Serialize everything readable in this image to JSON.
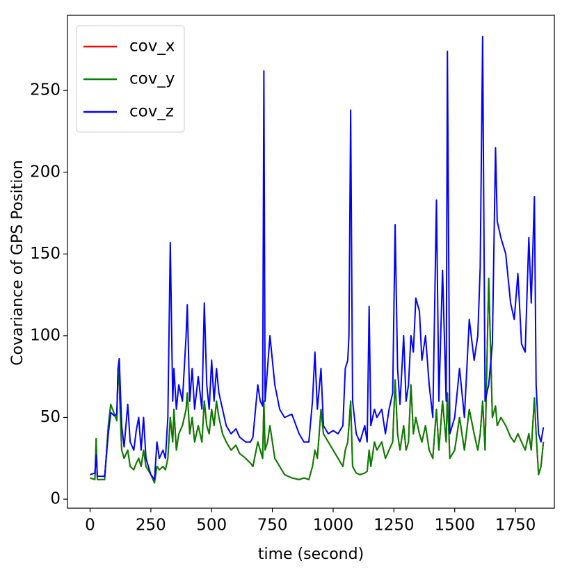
{
  "chart_data": {
    "type": "line",
    "xlabel": "time (second)",
    "ylabel": "Covariance of GPS Position",
    "x": [
      0,
      20,
      25,
      30,
      60,
      75,
      85,
      100,
      110,
      115,
      120,
      130,
      140,
      155,
      165,
      180,
      190,
      200,
      210,
      220,
      230,
      250,
      265,
      275,
      285,
      300,
      310,
      320,
      330,
      340,
      345,
      355,
      365,
      380,
      395,
      400,
      410,
      420,
      430,
      445,
      460,
      470,
      480,
      490,
      500,
      510,
      520,
      530,
      545,
      560,
      580,
      600,
      615,
      640,
      660,
      670,
      690,
      700,
      710,
      715,
      720,
      730,
      740,
      760,
      780,
      800,
      830,
      860,
      880,
      900,
      915,
      925,
      935,
      950,
      960,
      980,
      1000,
      1020,
      1040,
      1050,
      1060,
      1065,
      1072,
      1080,
      1095,
      1110,
      1130,
      1140,
      1148,
      1155,
      1170,
      1180,
      1200,
      1215,
      1230,
      1245,
      1255,
      1265,
      1275,
      1290,
      1300,
      1310,
      1320,
      1330,
      1340,
      1355,
      1365,
      1380,
      1395,
      1410,
      1425,
      1435,
      1450,
      1465,
      1470,
      1480,
      1500,
      1520,
      1540,
      1560,
      1580,
      1595,
      1605,
      1615,
      1625,
      1640,
      1655,
      1668,
      1675,
      1690,
      1710,
      1730,
      1745,
      1760,
      1775,
      1790,
      1805,
      1815,
      1828,
      1835,
      1845,
      1855,
      1865
    ],
    "series": [
      {
        "name": "cov_x",
        "color": "#ff0000",
        "values": [
          13,
          12,
          37,
          12,
          12,
          45,
          58,
          52,
          48,
          80,
          70,
          30,
          25,
          30,
          20,
          18,
          22,
          25,
          20,
          30,
          20,
          15,
          10,
          20,
          18,
          20,
          18,
          25,
          50,
          35,
          55,
          30,
          40,
          45,
          55,
          65,
          40,
          50,
          35,
          45,
          35,
          60,
          45,
          40,
          55,
          45,
          60,
          50,
          40,
          35,
          30,
          33,
          28,
          25,
          22,
          20,
          35,
          30,
          25,
          60,
          30,
          35,
          45,
          25,
          20,
          15,
          13,
          12,
          13,
          12,
          20,
          30,
          25,
          55,
          40,
          35,
          30,
          25,
          20,
          30,
          35,
          45,
          60,
          20,
          16,
          15,
          16,
          17,
          30,
          20,
          35,
          30,
          35,
          25,
          30,
          35,
          73,
          40,
          30,
          45,
          30,
          35,
          70,
          40,
          50,
          40,
          35,
          45,
          30,
          25,
          55,
          30,
          60,
          35,
          65,
          25,
          30,
          50,
          30,
          55,
          40,
          30,
          40,
          60,
          30,
          135,
          50,
          57,
          45,
          50,
          45,
          38,
          35,
          40,
          35,
          30,
          40,
          30,
          62,
          40,
          15,
          20,
          35
        ]
      },
      {
        "name": "cov_y",
        "color": "#008000",
        "values": [
          13,
          12,
          37,
          12,
          12,
          45,
          58,
          52,
          48,
          80,
          70,
          30,
          25,
          30,
          20,
          18,
          22,
          25,
          20,
          30,
          20,
          15,
          10,
          20,
          18,
          20,
          18,
          25,
          50,
          35,
          55,
          30,
          40,
          45,
          55,
          65,
          40,
          50,
          35,
          45,
          35,
          60,
          45,
          40,
          55,
          45,
          60,
          50,
          40,
          35,
          30,
          33,
          28,
          25,
          22,
          20,
          35,
          30,
          25,
          60,
          30,
          35,
          45,
          25,
          20,
          15,
          13,
          12,
          13,
          12,
          20,
          30,
          25,
          55,
          40,
          35,
          30,
          25,
          20,
          30,
          35,
          45,
          60,
          20,
          16,
          15,
          16,
          17,
          30,
          20,
          35,
          30,
          35,
          25,
          30,
          35,
          73,
          40,
          30,
          45,
          30,
          35,
          70,
          40,
          50,
          40,
          35,
          45,
          30,
          25,
          55,
          30,
          60,
          35,
          65,
          25,
          30,
          50,
          30,
          55,
          40,
          30,
          40,
          60,
          30,
          135,
          50,
          57,
          45,
          50,
          45,
          38,
          35,
          40,
          35,
          30,
          40,
          30,
          62,
          40,
          15,
          20,
          35
        ]
      },
      {
        "name": "cov_z",
        "color": "#0000ff",
        "values": [
          15,
          16,
          27,
          14,
          14,
          40,
          53,
          51,
          52,
          80,
          86,
          45,
          32,
          58,
          35,
          30,
          42,
          50,
          30,
          50,
          25,
          15,
          12,
          35,
          25,
          30,
          25,
          50,
          157,
          60,
          80,
          55,
          70,
          60,
          100,
          119,
          60,
          80,
          55,
          75,
          55,
          120,
          70,
          55,
          85,
          60,
          80,
          65,
          55,
          45,
          40,
          43,
          38,
          35,
          35,
          38,
          70,
          60,
          57,
          262,
          60,
          80,
          100,
          70,
          55,
          50,
          52,
          40,
          35,
          35,
          60,
          90,
          55,
          80,
          45,
          40,
          42,
          40,
          45,
          80,
          85,
          100,
          238,
          60,
          40,
          35,
          45,
          35,
          118,
          45,
          55,
          50,
          55,
          40,
          55,
          65,
          168,
          80,
          58,
          100,
          60,
          70,
          100,
          90,
          123,
          115,
          85,
          100,
          70,
          50,
          183,
          60,
          140,
          60,
          274,
          40,
          50,
          80,
          50,
          110,
          85,
          100,
          142,
          283,
          60,
          70,
          95,
          215,
          170,
          160,
          150,
          120,
          110,
          138,
          95,
          90,
          160,
          120,
          185,
          70,
          40,
          35,
          44
        ]
      }
    ],
    "xlim": [
      -93,
      1910
    ],
    "ylim": [
      -5.5,
      296
    ],
    "xticks": [
      0,
      250,
      500,
      750,
      1000,
      1250,
      1500,
      1750
    ],
    "yticks": [
      0,
      50,
      100,
      150,
      200,
      250
    ],
    "grid": false,
    "legend": "upper-left"
  }
}
